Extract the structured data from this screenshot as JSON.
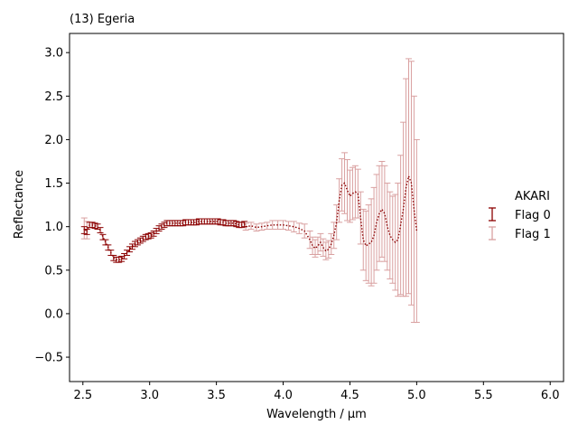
{
  "chart_data": {
    "type": "line",
    "title": "(13) Egeria",
    "xlabel": "Wavelength / µm",
    "ylabel": "Reflectance",
    "xlim": [
      2.4,
      6.1
    ],
    "ylim": [
      -0.78,
      3.22
    ],
    "xticks": [
      "2.5",
      "3.0",
      "3.5",
      "4.0",
      "4.5",
      "5.0",
      "5.5",
      "6.0"
    ],
    "xtick_values": [
      2.5,
      3.0,
      3.5,
      4.0,
      4.5,
      5.0,
      5.5,
      6.0
    ],
    "yticks": [
      "−0.5",
      "0.0",
      "0.5",
      "1.0",
      "1.5",
      "2.0",
      "2.5",
      "3.0"
    ],
    "ytick_values": [
      -0.5,
      0.0,
      0.5,
      1.0,
      1.5,
      2.0,
      2.5,
      3.0
    ],
    "grid": false,
    "legend": {
      "title": "AKARI",
      "position": "right",
      "entries": [
        "Flag 0",
        "Flag 1"
      ]
    },
    "colors": {
      "flag0": "#8b0000",
      "flag1": "#d9a0a0"
    },
    "series": [
      {
        "name": "Flag 0",
        "x": [
          2.51,
          2.53,
          2.55,
          2.57,
          2.59,
          2.61,
          2.63,
          2.65,
          2.67,
          2.69,
          2.71,
          2.73,
          2.75,
          2.77,
          2.79,
          2.81,
          2.83,
          2.85,
          2.87,
          2.89,
          2.91,
          2.93,
          2.95,
          2.97,
          2.99,
          3.01,
          3.03,
          3.05,
          3.07,
          3.09,
          3.11,
          3.13,
          3.15,
          3.17,
          3.19,
          3.21,
          3.23,
          3.25,
          3.27,
          3.29,
          3.31,
          3.33,
          3.35,
          3.37,
          3.39,
          3.41,
          3.43,
          3.45,
          3.47,
          3.49,
          3.51,
          3.53,
          3.55,
          3.57,
          3.59,
          3.61,
          3.63,
          3.65,
          3.67,
          3.69,
          3.71
        ],
        "y": [
          0.96,
          0.94,
          1.02,
          1.02,
          1.01,
          1.0,
          0.96,
          0.88,
          0.82,
          0.76,
          0.7,
          0.64,
          0.62,
          0.62,
          0.63,
          0.66,
          0.7,
          0.74,
          0.77,
          0.8,
          0.82,
          0.84,
          0.86,
          0.88,
          0.89,
          0.9,
          0.92,
          0.95,
          0.98,
          1.0,
          1.02,
          1.04,
          1.04,
          1.04,
          1.04,
          1.04,
          1.04,
          1.04,
          1.05,
          1.05,
          1.05,
          1.05,
          1.05,
          1.06,
          1.06,
          1.06,
          1.06,
          1.06,
          1.06,
          1.06,
          1.06,
          1.05,
          1.05,
          1.04,
          1.04,
          1.04,
          1.04,
          1.03,
          1.02,
          1.02,
          1.03
        ],
        "err": [
          0.04,
          0.03,
          0.03,
          0.03,
          0.03,
          0.03,
          0.03,
          0.03,
          0.03,
          0.03,
          0.03,
          0.03,
          0.03,
          0.03,
          0.03,
          0.03,
          0.03,
          0.03,
          0.03,
          0.03,
          0.03,
          0.03,
          0.03,
          0.03,
          0.03,
          0.03,
          0.03,
          0.03,
          0.03,
          0.03,
          0.03,
          0.03,
          0.03,
          0.03,
          0.03,
          0.03,
          0.03,
          0.03,
          0.03,
          0.03,
          0.03,
          0.03,
          0.03,
          0.03,
          0.03,
          0.03,
          0.03,
          0.03,
          0.03,
          0.03,
          0.03,
          0.03,
          0.03,
          0.03,
          0.03,
          0.03,
          0.03,
          0.03,
          0.03,
          0.03,
          0.03
        ]
      },
      {
        "name": "Flag 1",
        "x": [
          2.51,
          2.53,
          3.72,
          3.76,
          3.8,
          3.84,
          3.88,
          3.92,
          3.96,
          4.0,
          4.04,
          4.08,
          4.12,
          4.16,
          4.2,
          4.22,
          4.24,
          4.26,
          4.28,
          4.3,
          4.32,
          4.34,
          4.36,
          4.38,
          4.4,
          4.42,
          4.44,
          4.46,
          4.48,
          4.5,
          4.52,
          4.54,
          4.56,
          4.58,
          4.6,
          4.62,
          4.64,
          4.66,
          4.68,
          4.7,
          4.72,
          4.74,
          4.76,
          4.78,
          4.8,
          4.82,
          4.84,
          4.86,
          4.88,
          4.9,
          4.92,
          4.94,
          4.96,
          4.98,
          5.0
        ],
        "y": [
          0.98,
          0.96,
          1.0,
          1.01,
          0.99,
          1.0,
          1.01,
          1.02,
          1.02,
          1.02,
          1.01,
          1.0,
          0.98,
          0.95,
          0.85,
          0.78,
          0.75,
          0.78,
          0.82,
          0.76,
          0.72,
          0.74,
          0.8,
          0.9,
          1.05,
          1.3,
          1.48,
          1.5,
          1.42,
          1.35,
          1.38,
          1.4,
          1.38,
          1.1,
          0.85,
          0.78,
          0.8,
          0.82,
          0.9,
          1.05,
          1.15,
          1.2,
          1.15,
          1.0,
          0.9,
          0.85,
          0.82,
          0.85,
          1.02,
          1.2,
          1.45,
          1.58,
          1.5,
          1.2,
          0.95
        ],
        "err": [
          0.12,
          0.1,
          0.04,
          0.04,
          0.04,
          0.04,
          0.04,
          0.05,
          0.05,
          0.05,
          0.05,
          0.06,
          0.06,
          0.08,
          0.1,
          0.1,
          0.1,
          0.1,
          0.1,
          0.1,
          0.1,
          0.1,
          0.12,
          0.15,
          0.2,
          0.25,
          0.3,
          0.35,
          0.35,
          0.3,
          0.3,
          0.3,
          0.28,
          0.3,
          0.35,
          0.4,
          0.45,
          0.5,
          0.55,
          0.55,
          0.55,
          0.55,
          0.55,
          0.5,
          0.5,
          0.5,
          0.55,
          0.65,
          0.8,
          1.0,
          1.25,
          1.35,
          1.4,
          1.3,
          1.05
        ]
      }
    ]
  }
}
